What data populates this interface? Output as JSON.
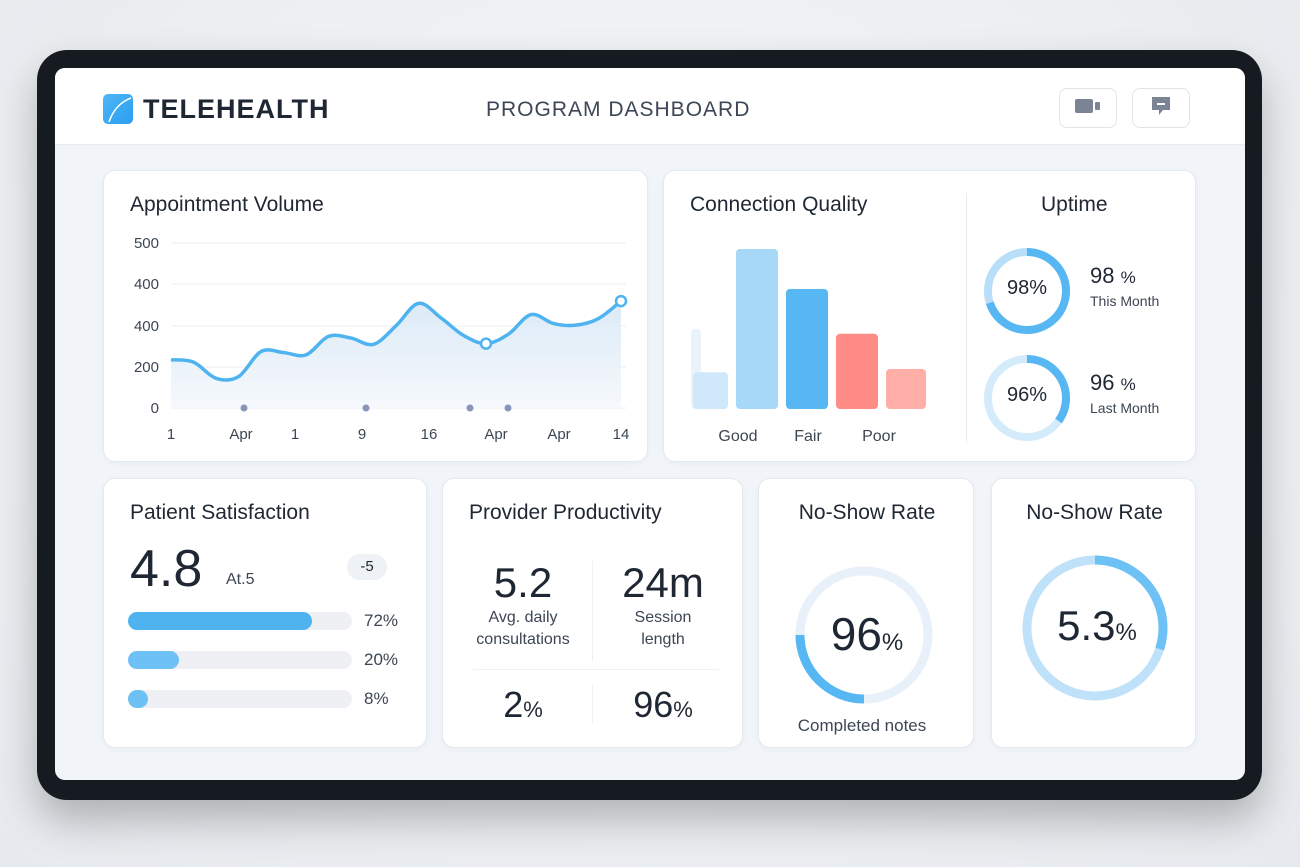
{
  "header": {
    "brand": "TELEHEALTH",
    "title": "PROGRAM DASHBOARD",
    "icons": [
      "video-camera-icon",
      "chat-icon"
    ]
  },
  "colors": {
    "accent": "#4fb3f0",
    "accent_light": "#a7d8f7",
    "red": "#ff8c86",
    "red_light": "#ffafa8"
  },
  "appointment_volume": {
    "title": "Appointment Volume"
  },
  "connection_quality": {
    "title": "Connection Quality"
  },
  "uptime": {
    "title": "Uptime",
    "items": [
      {
        "ring": "98%",
        "value": "98",
        "unit": "%",
        "label": "This Month",
        "fraction": 0.98
      },
      {
        "ring": "96%",
        "value": "96",
        "unit": "%",
        "label": "Last Month",
        "fraction": 0.96
      }
    ]
  },
  "patient_satisfaction": {
    "title": "Patient Satisfaction",
    "score": "4.8",
    "scale": "At.5",
    "badge": "-5",
    "bars": [
      {
        "label": "72%",
        "fraction": 0.72
      },
      {
        "label": "20%",
        "fraction": 0.2
      },
      {
        "label": "8%",
        "fraction": 0.08
      }
    ]
  },
  "provider_productivity": {
    "title": "Provider Productivity",
    "stats": [
      {
        "value": "5.2",
        "label1": "Avg. daily",
        "label2": "consultations"
      },
      {
        "value": "24m",
        "label1": "Session",
        "label2": "length"
      }
    ],
    "bottom": [
      {
        "value": "2",
        "unit": "%"
      },
      {
        "value": "96",
        "unit": "%"
      }
    ]
  },
  "no_show_1": {
    "title": "No-Show Rate",
    "value": "96",
    "unit": "%",
    "caption": "Completed notes"
  },
  "no_show_2": {
    "title": "No-Show Rate",
    "value": "5.3",
    "unit": "%"
  },
  "chart_data": [
    {
      "type": "line",
      "title": "Appointment Volume",
      "y_ticks": [
        "500",
        "400",
        "400",
        "200",
        "0"
      ],
      "ylim": [
        0,
        500
      ],
      "grid": true,
      "x_ticks": [
        "1",
        "Apr",
        "1",
        "9",
        "16",
        "Apr",
        "Apr",
        "14"
      ],
      "values": [
        146,
        139,
        90,
        95,
        171,
        168,
        161,
        217,
        212,
        193,
        249,
        317,
        273,
        220,
        195,
        224,
        283,
        256,
        251,
        271,
        324
      ]
    },
    {
      "type": "bar",
      "title": "Connection Quality",
      "categories": [
        "Good",
        "Fair",
        "Poor"
      ],
      "bars": [
        {
          "value": 23,
          "color": "#cfe8fa"
        },
        {
          "value": 100,
          "color": "#a7d8f7"
        },
        {
          "value": 75,
          "color": "#56b7f3"
        },
        {
          "value": 47,
          "color": "#ff8c86"
        },
        {
          "value": 25,
          "color": "#ffafa8"
        }
      ],
      "background_bar": 50
    }
  ]
}
